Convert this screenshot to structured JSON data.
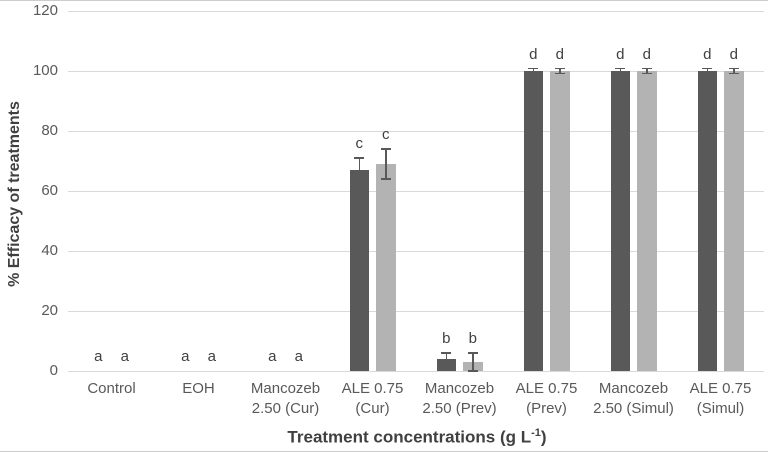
{
  "chart_data": {
    "type": "bar",
    "title": "",
    "ylabel": "% Efficacy of treatments",
    "xlabel": {
      "prefix": "Treatment concentrations (g L",
      "sup": "-1",
      "suffix": ")"
    },
    "ylim": [
      0,
      120
    ],
    "yticks": [
      0,
      20,
      40,
      60,
      80,
      100,
      120
    ],
    "grid": true,
    "legend_position": "none",
    "categories": [
      "Control",
      "EOH",
      "Mancozeb\n2.50 (Cur)",
      "ALE 0.75\n(Cur)",
      "Mancozeb\n2.50 (Prev)",
      "ALE 0.75\n(Prev)",
      "Mancozeb\n2.50 (Simul)",
      "ALE 0.75\n(Simul)"
    ],
    "series": [
      {
        "name": "dark-gray-series",
        "color": "#595959",
        "values": [
          0,
          0,
          0,
          67,
          4,
          100,
          100,
          100
        ],
        "errors": [
          0,
          0,
          0,
          4,
          2,
          0.8,
          0.8,
          0.8
        ],
        "letters": [
          "a",
          "a",
          "a",
          "c",
          "b",
          "d",
          "d",
          "d"
        ]
      },
      {
        "name": "light-gray-series",
        "color": "#b3b3b3",
        "values": [
          0,
          0,
          0,
          69,
          3,
          100,
          100,
          100
        ],
        "errors": [
          0,
          0,
          0,
          5,
          3,
          0.8,
          0.8,
          0.8
        ],
        "letters": [
          "a",
          "a",
          "a",
          "c",
          "b",
          "d",
          "d",
          "d"
        ]
      }
    ],
    "colors": {
      "grid": "#d9d9d9",
      "axis_text": "#595959",
      "letter": "#404040",
      "error_bar": "#595959"
    }
  }
}
